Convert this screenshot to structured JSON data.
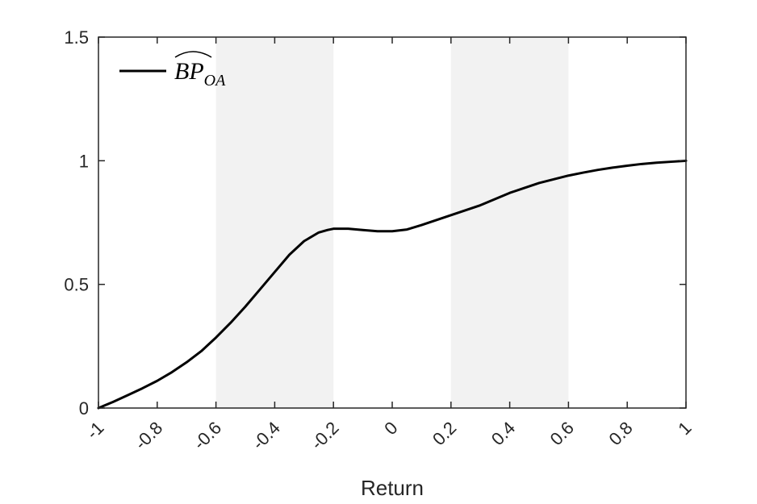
{
  "chart_data": {
    "type": "line",
    "title": "",
    "xlabel": "Return",
    "ylabel": "",
    "xlim": [
      -1,
      1
    ],
    "ylim": [
      0,
      1.5
    ],
    "xticks": [
      -1,
      -0.8,
      -0.6,
      -0.4,
      -0.2,
      0,
      0.2,
      0.4,
      0.6,
      0.8,
      1
    ],
    "xtick_labels": [
      "-1",
      "-0.8",
      "-0.6",
      "-0.4",
      "-0.2",
      "0",
      "0.2",
      "0.4",
      "0.6",
      "0.8",
      "1"
    ],
    "yticks": [
      0,
      0.5,
      1,
      1.5
    ],
    "ytick_labels": [
      "0",
      "0.5",
      "1",
      "1.5"
    ],
    "grid": false,
    "shaded_regions": [
      {
        "x0": -0.6,
        "x1": -0.2,
        "color": "#f2f2f2"
      },
      {
        "x0": 0.2,
        "x1": 0.6,
        "color": "#f2f2f2"
      }
    ],
    "legend": {
      "placement": "top-left",
      "entries": [
        {
          "label_main": "BP",
          "label_sub": "OA",
          "hat": true
        }
      ]
    },
    "series": [
      {
        "color": "#000000",
        "x": [
          -1,
          -0.95,
          -0.9,
          -0.85,
          -0.8,
          -0.75,
          -0.7,
          -0.65,
          -0.6,
          -0.55,
          -0.5,
          -0.45,
          -0.4,
          -0.35,
          -0.3,
          -0.25,
          -0.22,
          -0.2,
          -0.15,
          -0.1,
          -0.05,
          0,
          0.05,
          0.1,
          0.15,
          0.2,
          0.25,
          0.3,
          0.35,
          0.4,
          0.45,
          0.5,
          0.55,
          0.6,
          0.65,
          0.7,
          0.75,
          0.8,
          0.85,
          0.9,
          0.95,
          1
        ],
        "y": [
          0,
          0.025,
          0.052,
          0.08,
          0.11,
          0.145,
          0.185,
          0.23,
          0.285,
          0.345,
          0.41,
          0.48,
          0.55,
          0.62,
          0.675,
          0.71,
          0.72,
          0.725,
          0.725,
          0.72,
          0.715,
          0.715,
          0.722,
          0.74,
          0.76,
          0.78,
          0.8,
          0.82,
          0.845,
          0.87,
          0.89,
          0.91,
          0.925,
          0.94,
          0.952,
          0.963,
          0.972,
          0.98,
          0.987,
          0.992,
          0.996,
          1
        ]
      }
    ]
  }
}
